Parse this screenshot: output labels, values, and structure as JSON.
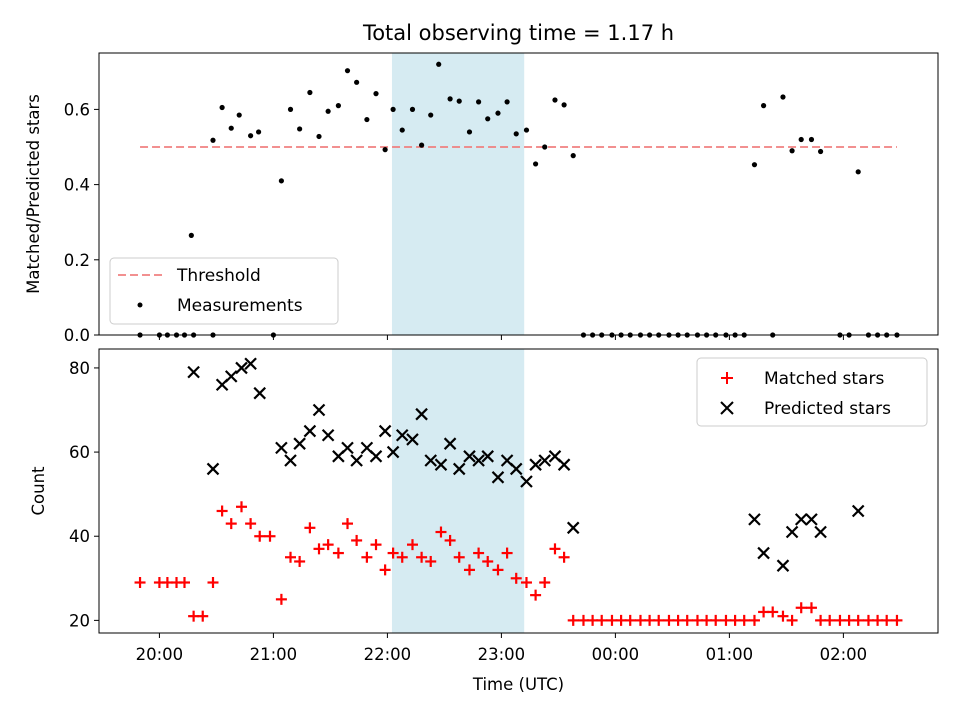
{
  "chart_data": [
    {
      "type": "scatter",
      "title": "Total observing time = 1.17 h",
      "xlabel": "",
      "ylabel": "Matched/Predicted stars",
      "xlim": [
        19.47,
        26.83
      ],
      "ylim": [
        0.0,
        0.75
      ],
      "yticks": [
        0.0,
        0.2,
        0.4,
        0.6
      ],
      "ytick_labels": [
        "0.0",
        "0.2",
        "0.4",
        "0.6"
      ],
      "highlight_span": {
        "x0": 22.04,
        "x1": 23.2,
        "color": "#add8e6"
      },
      "threshold": {
        "y": 0.5,
        "x0": 19.83,
        "x1": 26.47,
        "color": "#f08080"
      },
      "legend": {
        "placement": "lower-left",
        "entries": [
          {
            "label": "Threshold",
            "marker": "dashed-line",
            "color": "#f08080"
          },
          {
            "label": "Measurements",
            "marker": "dot",
            "color": "#000000"
          }
        ]
      },
      "series": [
        {
          "name": "Measurements",
          "color": "#000000",
          "points": [
            [
              19.83,
              0.0
            ],
            [
              20.0,
              0.0
            ],
            [
              20.07,
              0.0
            ],
            [
              20.15,
              0.0
            ],
            [
              20.22,
              0.0
            ],
            [
              20.3,
              0.0
            ],
            [
              20.47,
              0.0
            ],
            [
              21.0,
              0.0
            ],
            [
              20.28,
              0.265
            ],
            [
              20.47,
              0.518
            ],
            [
              20.55,
              0.605
            ],
            [
              20.63,
              0.55
            ],
            [
              20.7,
              0.585
            ],
            [
              20.8,
              0.53
            ],
            [
              20.87,
              0.54
            ],
            [
              21.07,
              0.41
            ],
            [
              21.15,
              0.6
            ],
            [
              21.23,
              0.548
            ],
            [
              21.32,
              0.645
            ],
            [
              21.4,
              0.528
            ],
            [
              21.48,
              0.595
            ],
            [
              21.57,
              0.61
            ],
            [
              21.65,
              0.703
            ],
            [
              21.73,
              0.672
            ],
            [
              21.82,
              0.573
            ],
            [
              21.9,
              0.642
            ],
            [
              21.98,
              0.493
            ],
            [
              22.05,
              0.6
            ],
            [
              22.13,
              0.545
            ],
            [
              22.22,
              0.6
            ],
            [
              22.3,
              0.505
            ],
            [
              22.38,
              0.585
            ],
            [
              22.45,
              0.72
            ],
            [
              22.55,
              0.628
            ],
            [
              22.63,
              0.622
            ],
            [
              22.72,
              0.54
            ],
            [
              22.8,
              0.62
            ],
            [
              22.88,
              0.575
            ],
            [
              22.97,
              0.59
            ],
            [
              23.05,
              0.62
            ],
            [
              23.13,
              0.535
            ],
            [
              23.22,
              0.545
            ],
            [
              23.3,
              0.455
            ],
            [
              23.38,
              0.5
            ],
            [
              23.47,
              0.625
            ],
            [
              23.55,
              0.612
            ],
            [
              23.63,
              0.477
            ],
            [
              23.72,
              0.0
            ],
            [
              23.8,
              0.0
            ],
            [
              23.88,
              0.0
            ],
            [
              23.97,
              0.0
            ],
            [
              24.05,
              0.0
            ],
            [
              24.13,
              0.0
            ],
            [
              24.22,
              0.0
            ],
            [
              24.3,
              0.0
            ],
            [
              24.38,
              0.0
            ],
            [
              24.47,
              0.0
            ],
            [
              24.55,
              0.0
            ],
            [
              24.63,
              0.0
            ],
            [
              24.72,
              0.0
            ],
            [
              24.8,
              0.0
            ],
            [
              24.88,
              0.0
            ],
            [
              24.97,
              0.0
            ],
            [
              25.05,
              0.0
            ],
            [
              25.13,
              0.0
            ],
            [
              25.38,
              0.0
            ],
            [
              25.22,
              0.453
            ],
            [
              25.3,
              0.61
            ],
            [
              25.47,
              0.633
            ],
            [
              25.55,
              0.49
            ],
            [
              25.63,
              0.52
            ],
            [
              25.72,
              0.52
            ],
            [
              25.8,
              0.488
            ],
            [
              26.13,
              0.434
            ],
            [
              25.97,
              0.0
            ],
            [
              26.05,
              0.0
            ],
            [
              26.22,
              0.0
            ],
            [
              26.3,
              0.0
            ],
            [
              26.38,
              0.0
            ],
            [
              26.47,
              0.0
            ]
          ]
        }
      ]
    },
    {
      "type": "scatter",
      "title": "",
      "xlabel": "Time (UTC)",
      "ylabel": "Count",
      "xlim": [
        19.47,
        26.83
      ],
      "ylim": [
        17,
        84.5
      ],
      "xticks": [
        20,
        21,
        22,
        23,
        24,
        25,
        26
      ],
      "xtick_labels": [
        "20:00",
        "21:00",
        "22:00",
        "23:00",
        "00:00",
        "01:00",
        "02:00"
      ],
      "yticks": [
        20,
        40,
        60,
        80
      ],
      "ytick_labels": [
        "20",
        "40",
        "60",
        "80"
      ],
      "highlight_span": {
        "x0": 22.04,
        "x1": 23.2,
        "color": "#add8e6"
      },
      "legend": {
        "placement": "top-right",
        "entries": [
          {
            "label": "Matched stars",
            "marker": "plus",
            "color": "#ff0000"
          },
          {
            "label": "Predicted stars",
            "marker": "x",
            "color": "#000000"
          }
        ]
      },
      "series": [
        {
          "name": "Matched stars",
          "marker": "plus",
          "color": "#ff0000",
          "points": [
            [
              19.83,
              29
            ],
            [
              20.0,
              29
            ],
            [
              20.07,
              29
            ],
            [
              20.15,
              29
            ],
            [
              20.22,
              29
            ],
            [
              20.3,
              21
            ],
            [
              20.38,
              21
            ],
            [
              20.47,
              29
            ],
            [
              20.55,
              46
            ],
            [
              20.63,
              43
            ],
            [
              20.72,
              47
            ],
            [
              20.8,
              43
            ],
            [
              20.88,
              40
            ],
            [
              20.97,
              40
            ],
            [
              21.07,
              25
            ],
            [
              21.15,
              35
            ],
            [
              21.23,
              34
            ],
            [
              21.32,
              42
            ],
            [
              21.4,
              37
            ],
            [
              21.48,
              38
            ],
            [
              21.57,
              36
            ],
            [
              21.65,
              43
            ],
            [
              21.73,
              39
            ],
            [
              21.82,
              35
            ],
            [
              21.9,
              38
            ],
            [
              21.98,
              32
            ],
            [
              22.05,
              36
            ],
            [
              22.13,
              35
            ],
            [
              22.22,
              38
            ],
            [
              22.3,
              35
            ],
            [
              22.38,
              34
            ],
            [
              22.47,
              41
            ],
            [
              22.55,
              39
            ],
            [
              22.63,
              35
            ],
            [
              22.72,
              32
            ],
            [
              22.8,
              36
            ],
            [
              22.88,
              34
            ],
            [
              22.97,
              32
            ],
            [
              23.05,
              36
            ],
            [
              23.13,
              30
            ],
            [
              23.22,
              29
            ],
            [
              23.3,
              26
            ],
            [
              23.38,
              29
            ],
            [
              23.47,
              37
            ],
            [
              23.55,
              35
            ],
            [
              23.63,
              20
            ],
            [
              23.72,
              20
            ],
            [
              23.8,
              20
            ],
            [
              23.88,
              20
            ],
            [
              23.97,
              20
            ],
            [
              24.05,
              20
            ],
            [
              24.13,
              20
            ],
            [
              24.22,
              20
            ],
            [
              24.3,
              20
            ],
            [
              24.38,
              20
            ],
            [
              24.47,
              20
            ],
            [
              24.55,
              20
            ],
            [
              24.63,
              20
            ],
            [
              24.72,
              20
            ],
            [
              24.8,
              20
            ],
            [
              24.88,
              20
            ],
            [
              24.97,
              20
            ],
            [
              25.05,
              20
            ],
            [
              25.13,
              20
            ],
            [
              25.22,
              20
            ],
            [
              25.3,
              22
            ],
            [
              25.38,
              22
            ],
            [
              25.47,
              21
            ],
            [
              25.55,
              20
            ],
            [
              25.63,
              23
            ],
            [
              25.72,
              23
            ],
            [
              25.8,
              20
            ],
            [
              25.88,
              20
            ],
            [
              25.97,
              20
            ],
            [
              26.05,
              20
            ],
            [
              26.13,
              20
            ],
            [
              26.22,
              20
            ],
            [
              26.3,
              20
            ],
            [
              26.38,
              20
            ],
            [
              26.47,
              20
            ]
          ]
        },
        {
          "name": "Predicted stars",
          "marker": "x",
          "color": "#000000",
          "points": [
            [
              20.3,
              79
            ],
            [
              20.47,
              56
            ],
            [
              20.55,
              76
            ],
            [
              20.63,
              78
            ],
            [
              20.72,
              80
            ],
            [
              20.8,
              81
            ],
            [
              20.88,
              74
            ],
            [
              21.07,
              61
            ],
            [
              21.15,
              58
            ],
            [
              21.23,
              62
            ],
            [
              21.32,
              65
            ],
            [
              21.4,
              70
            ],
            [
              21.48,
              64
            ],
            [
              21.57,
              59
            ],
            [
              21.65,
              61
            ],
            [
              21.73,
              58
            ],
            [
              21.82,
              61
            ],
            [
              21.9,
              59
            ],
            [
              21.98,
              65
            ],
            [
              22.05,
              60
            ],
            [
              22.13,
              64
            ],
            [
              22.22,
              63
            ],
            [
              22.3,
              69
            ],
            [
              22.38,
              58
            ],
            [
              22.47,
              57
            ],
            [
              22.55,
              62
            ],
            [
              22.63,
              56
            ],
            [
              22.72,
              59
            ],
            [
              22.8,
              58
            ],
            [
              22.88,
              59
            ],
            [
              22.97,
              54
            ],
            [
              23.05,
              58
            ],
            [
              23.13,
              56
            ],
            [
              23.22,
              53
            ],
            [
              23.3,
              57
            ],
            [
              23.38,
              58
            ],
            [
              23.47,
              59
            ],
            [
              23.55,
              57
            ],
            [
              23.63,
              42
            ],
            [
              25.22,
              44
            ],
            [
              25.3,
              36
            ],
            [
              25.47,
              33
            ],
            [
              25.55,
              41
            ],
            [
              25.63,
              44
            ],
            [
              25.72,
              44
            ],
            [
              25.8,
              41
            ],
            [
              26.13,
              46
            ]
          ]
        }
      ]
    }
  ]
}
